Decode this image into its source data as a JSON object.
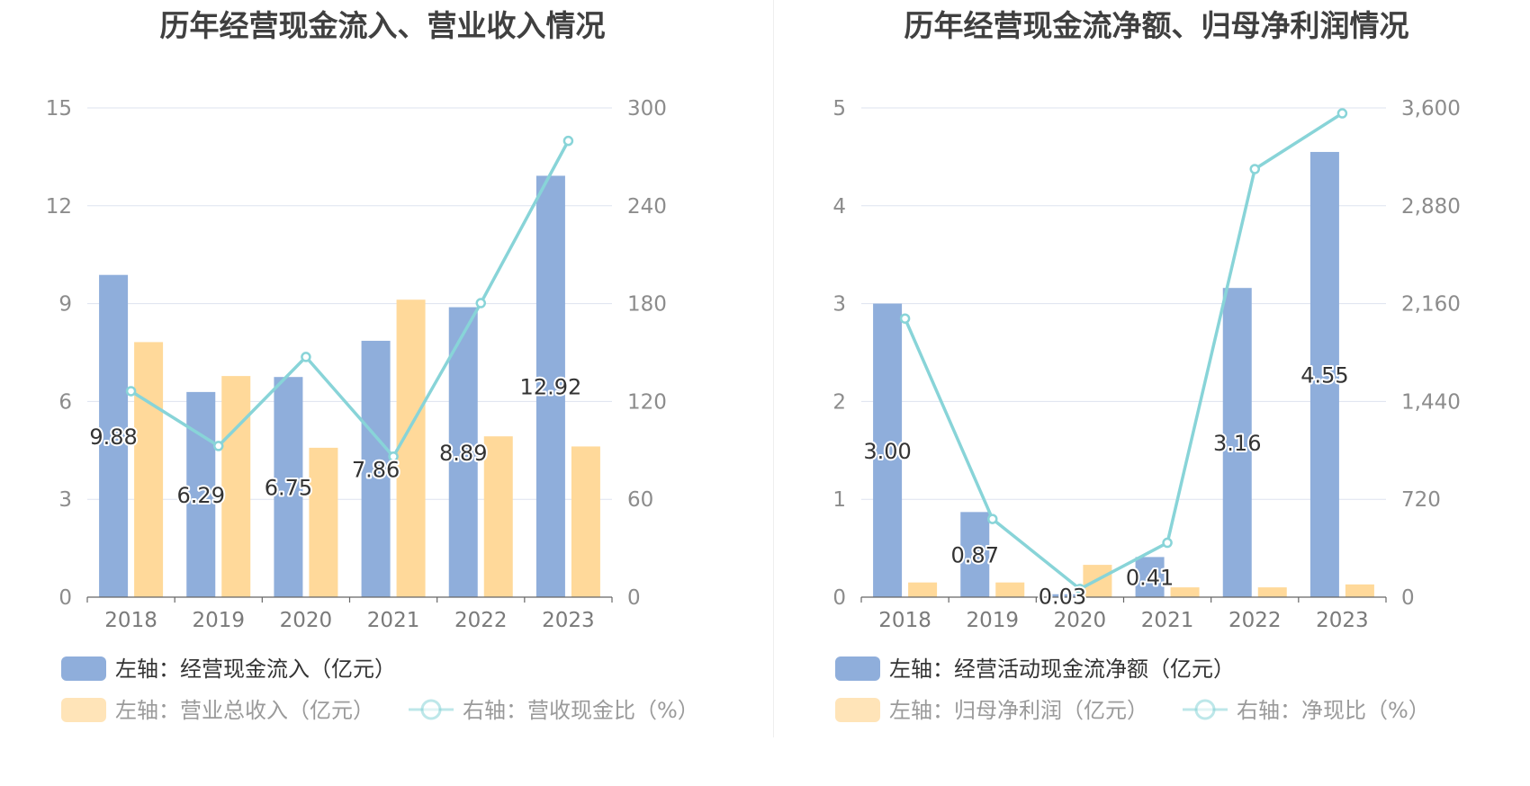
{
  "chart_data": [
    {
      "type": "bar",
      "title": "历年经营现金流入、营业收入情况",
      "categories": [
        "2018",
        "2019",
        "2020",
        "2021",
        "2022",
        "2023"
      ],
      "left_axis": {
        "min": 0,
        "max": 15,
        "ticks": [
          0,
          3,
          6,
          9,
          12,
          15
        ]
      },
      "right_axis": {
        "min": 0,
        "max": 300,
        "ticks": [
          "0",
          "60",
          "120",
          "180",
          "240",
          "300"
        ]
      },
      "grid": true,
      "series": [
        {
          "name": "左轴：经营现金流入（亿元）",
          "kind": "bar",
          "axis": "left",
          "color": "#8faedb",
          "values": [
            9.88,
            6.29,
            6.75,
            7.86,
            8.89,
            12.92
          ],
          "labels": [
            "9.88",
            "6.29",
            "6.75",
            "7.86",
            "8.89",
            "12.92"
          ]
        },
        {
          "name": "左轴：营业总收入（亿元）",
          "kind": "bar",
          "axis": "left",
          "color": "#ffd99a",
          "values": [
            7.82,
            6.78,
            4.58,
            9.12,
            4.93,
            4.62
          ]
        },
        {
          "name": "右轴：营收现金比（%）",
          "kind": "line",
          "axis": "right",
          "color": "#88d4d8",
          "values": [
            126.3,
            92.7,
            147.3,
            86.2,
            180.3,
            279.8
          ]
        }
      ],
      "legend_position": "bottom"
    },
    {
      "type": "bar",
      "title": "历年经营现金流净额、归母净利润情况",
      "categories": [
        "2018",
        "2019",
        "2020",
        "2021",
        "2022",
        "2023"
      ],
      "left_axis": {
        "min": 0,
        "max": 5,
        "ticks": [
          0,
          1,
          2,
          3,
          4,
          5
        ]
      },
      "right_axis": {
        "min": 0,
        "max": 3600,
        "ticks": [
          "0",
          "720",
          "1,440",
          "2,160",
          "2,880",
          "3,600"
        ]
      },
      "grid": true,
      "series": [
        {
          "name": "左轴：经营活动现金流净额（亿元）",
          "kind": "bar",
          "axis": "left",
          "color": "#8faedb",
          "values": [
            3.0,
            0.87,
            0.03,
            0.41,
            3.16,
            4.55
          ],
          "labels": [
            "3.00",
            "0.87",
            "0.03",
            "0.41",
            "3.16",
            "4.55"
          ]
        },
        {
          "name": "左轴：归母净利润（亿元）",
          "kind": "bar",
          "axis": "left",
          "color": "#ffd99a",
          "values": [
            0.15,
            0.15,
            0.33,
            0.1,
            0.1,
            0.13
          ]
        },
        {
          "name": "右轴：净现比（%）",
          "kind": "line",
          "axis": "right",
          "color": "#88d4d8",
          "values": [
            2050,
            575,
            60,
            400,
            3150,
            3560
          ]
        }
      ],
      "legend_position": "bottom"
    }
  ]
}
